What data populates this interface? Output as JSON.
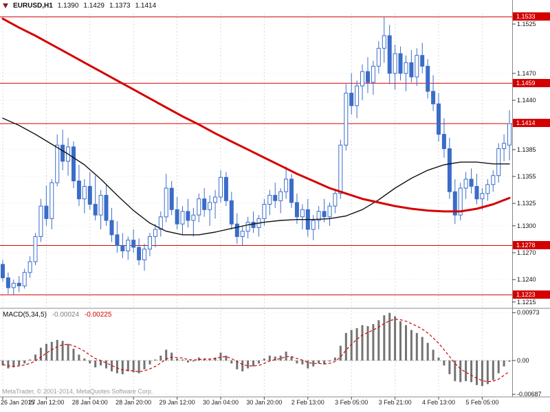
{
  "header": {
    "symbol_period": "EURUSD,H1",
    "open": "1.1390",
    "high": "1.1429",
    "low": "1.1373",
    "close": "1.1414"
  },
  "footer": {
    "copyright": "MetaTrader, © 2001-2014, MetaQuotes Software Corp."
  },
  "icons": {
    "chart_menu": "triangle-down"
  },
  "colors": {
    "bull_fill": "#ffffff",
    "bear_fill": "#3a6cc8",
    "candle_outline": "#3a6cc8",
    "level_line": "#d40000",
    "tag_bg": "#d40000",
    "tag_text": "#ffffff",
    "ma_fast": "#111111",
    "ma_slow": "#d40000",
    "histogram": "#737373",
    "signal": "#d40000",
    "grid": "#d8d8d8"
  },
  "chart_data": [
    {
      "type": "candlestick",
      "title": "EURUSD,H1",
      "ylim": [
        1.12095,
        1.15365
      ],
      "y_ticks": [
        1.1525,
        1.147,
        1.144,
        1.1385,
        1.1355,
        1.1325,
        1.13,
        1.127,
        1.124,
        1.1215
      ],
      "level_lines": [
        1.1533,
        1.1459,
        1.1414,
        1.1278,
        1.1223
      ],
      "x_labels": [
        {
          "text": "26 Jan 2015",
          "bar": 0
        },
        {
          "text": "27 Jan 12:00",
          "bar": 8
        },
        {
          "text": "28 Jan 04:00",
          "bar": 16
        },
        {
          "text": "28 Jan 20:00",
          "bar": 24
        },
        {
          "text": "29 Jan 12:00",
          "bar": 32
        },
        {
          "text": "30 Jan 04:00",
          "bar": 40
        },
        {
          "text": "30 Jan 20:00",
          "bar": 48
        },
        {
          "text": "2 Feb 13:00",
          "bar": 56
        },
        {
          "text": "3 Feb 05:00",
          "bar": 64
        },
        {
          "text": "3 Feb 21:00",
          "bar": 72
        },
        {
          "text": "4 Feb 13:00",
          "bar": 80
        },
        {
          "text": "5 Feb 05:00",
          "bar": 88
        }
      ],
      "candles": [
        [
          1.1257,
          1.1262,
          1.1238,
          1.1242
        ],
        [
          1.1242,
          1.1248,
          1.1224,
          1.1231
        ],
        [
          1.1231,
          1.124,
          1.1223,
          1.1236
        ],
        [
          1.1236,
          1.1244,
          1.1226,
          1.1233
        ],
        [
          1.1233,
          1.1252,
          1.123,
          1.1248
        ],
        [
          1.1248,
          1.1266,
          1.1242,
          1.126
        ],
        [
          1.126,
          1.1292,
          1.1256,
          1.1288
        ],
        [
          1.1288,
          1.133,
          1.1282,
          1.1322
        ],
        [
          1.1322,
          1.1345,
          1.13,
          1.1308
        ],
        [
          1.1308,
          1.1352,
          1.1296,
          1.1348
        ],
        [
          1.1348,
          1.1402,
          1.1344,
          1.139
        ],
        [
          1.139,
          1.1407,
          1.1362,
          1.1372
        ],
        [
          1.1372,
          1.1398,
          1.1356,
          1.1388
        ],
        [
          1.1388,
          1.1394,
          1.1342,
          1.135
        ],
        [
          1.135,
          1.1368,
          1.1322,
          1.133
        ],
        [
          1.133,
          1.1352,
          1.1314,
          1.1344
        ],
        [
          1.1344,
          1.136,
          1.1318,
          1.1324
        ],
        [
          1.1324,
          1.1356,
          1.1306,
          1.1312
        ],
        [
          1.1312,
          1.134,
          1.1296,
          1.1334
        ],
        [
          1.1334,
          1.1346,
          1.13,
          1.1306
        ],
        [
          1.1306,
          1.132,
          1.1282,
          1.129
        ],
        [
          1.129,
          1.1305,
          1.127,
          1.1278
        ],
        [
          1.1278,
          1.1292,
          1.1264,
          1.1272
        ],
        [
          1.1272,
          1.1288,
          1.1262,
          1.1284
        ],
        [
          1.1284,
          1.1296,
          1.127,
          1.1276
        ],
        [
          1.1276,
          1.1286,
          1.1256,
          1.1262
        ],
        [
          1.1262,
          1.128,
          1.125,
          1.1274
        ],
        [
          1.1274,
          1.1292,
          1.1266,
          1.1288
        ],
        [
          1.1288,
          1.1302,
          1.1276,
          1.1296
        ],
        [
          1.1296,
          1.1316,
          1.1288,
          1.131
        ],
        [
          1.131,
          1.1358,
          1.1304,
          1.1342
        ],
        [
          1.1342,
          1.135,
          1.1312,
          1.1318
        ],
        [
          1.1318,
          1.1332,
          1.1296,
          1.1302
        ],
        [
          1.1302,
          1.1322,
          1.129,
          1.1316
        ],
        [
          1.1316,
          1.133,
          1.1298,
          1.1306
        ],
        [
          1.1306,
          1.132,
          1.1288,
          1.1312
        ],
        [
          1.1312,
          1.1336,
          1.1304,
          1.133
        ],
        [
          1.133,
          1.1342,
          1.131,
          1.1318
        ],
        [
          1.1318,
          1.1334,
          1.13,
          1.1326
        ],
        [
          1.1326,
          1.134,
          1.1308,
          1.1332
        ],
        [
          1.1332,
          1.1362,
          1.1326,
          1.1354
        ],
        [
          1.1354,
          1.136,
          1.1322,
          1.1328
        ],
        [
          1.1328,
          1.1338,
          1.1296,
          1.1302
        ],
        [
          1.1302,
          1.1314,
          1.128,
          1.1288
        ],
        [
          1.1288,
          1.13,
          1.1278,
          1.1294
        ],
        [
          1.1294,
          1.131,
          1.1286,
          1.1304
        ],
        [
          1.1304,
          1.1316,
          1.1292,
          1.1298
        ],
        [
          1.1298,
          1.1312,
          1.1288,
          1.1308
        ],
        [
          1.1308,
          1.133,
          1.13,
          1.1324
        ],
        [
          1.1324,
          1.134,
          1.1312,
          1.1334
        ],
        [
          1.1334,
          1.1348,
          1.132,
          1.1328
        ],
        [
          1.1328,
          1.1342,
          1.1314,
          1.1338
        ],
        [
          1.1338,
          1.1366,
          1.133,
          1.1352
        ],
        [
          1.1352,
          1.1358,
          1.132,
          1.1326
        ],
        [
          1.1326,
          1.1336,
          1.1302,
          1.131
        ],
        [
          1.131,
          1.1324,
          1.1296,
          1.1318
        ],
        [
          1.1318,
          1.133,
          1.1288,
          1.1296
        ],
        [
          1.1296,
          1.1312,
          1.1284,
          1.1306
        ],
        [
          1.1306,
          1.1322,
          1.1296,
          1.1316
        ],
        [
          1.1316,
          1.133,
          1.1304,
          1.131
        ],
        [
          1.131,
          1.1326,
          1.13,
          1.1322
        ],
        [
          1.1322,
          1.134,
          1.1314,
          1.1336
        ],
        [
          1.1336,
          1.1396,
          1.133,
          1.139
        ],
        [
          1.139,
          1.1458,
          1.1384,
          1.1448
        ],
        [
          1.1448,
          1.147,
          1.1424,
          1.1434
        ],
        [
          1.1434,
          1.1462,
          1.142,
          1.1456
        ],
        [
          1.1456,
          1.148,
          1.144,
          1.1472
        ],
        [
          1.1472,
          1.1488,
          1.1448,
          1.146
        ],
        [
          1.146,
          1.1484,
          1.1446,
          1.1478
        ],
        [
          1.1478,
          1.1506,
          1.147,
          1.1498
        ],
        [
          1.1498,
          1.1533,
          1.1482,
          1.1512
        ],
        [
          1.1512,
          1.1524,
          1.1458,
          1.147
        ],
        [
          1.147,
          1.1502,
          1.1452,
          1.1492
        ],
        [
          1.1492,
          1.15,
          1.1462,
          1.147
        ],
        [
          1.147,
          1.149,
          1.145,
          1.1482
        ],
        [
          1.1482,
          1.1496,
          1.146,
          1.1466
        ],
        [
          1.1466,
          1.1498,
          1.1456,
          1.149
        ],
        [
          1.149,
          1.1504,
          1.147,
          1.1478
        ],
        [
          1.1478,
          1.1486,
          1.1442,
          1.145
        ],
        [
          1.145,
          1.1468,
          1.1428,
          1.1436
        ],
        [
          1.1436,
          1.1448,
          1.1394,
          1.1402
        ],
        [
          1.1402,
          1.142,
          1.1376,
          1.1386
        ],
        [
          1.1386,
          1.1398,
          1.133,
          1.1338
        ],
        [
          1.1338,
          1.1352,
          1.1302,
          1.1312
        ],
        [
          1.1312,
          1.1348,
          1.1306,
          1.1342
        ],
        [
          1.1342,
          1.136,
          1.133,
          1.1352
        ],
        [
          1.1352,
          1.1364,
          1.1336,
          1.1344
        ],
        [
          1.1344,
          1.1358,
          1.1324,
          1.133
        ],
        [
          1.133,
          1.1342,
          1.1318,
          1.1336
        ],
        [
          1.1336,
          1.1352,
          1.1328,
          1.1346
        ],
        [
          1.1346,
          1.1362,
          1.1338,
          1.1356
        ],
        [
          1.1356,
          1.1392,
          1.1348,
          1.1386
        ],
        [
          1.1386,
          1.1402,
          1.1372,
          1.1392
        ],
        [
          1.139,
          1.1429,
          1.1373,
          1.1414
        ]
      ],
      "overlays": [
        {
          "name": "ma-fast-black",
          "color": "#111111",
          "width": 1.4,
          "step": 3,
          "prices": [
            1.142,
            1.1412,
            1.1402,
            1.1391,
            1.138,
            1.1368,
            1.1352,
            1.1334,
            1.1317,
            1.1303,
            1.1294,
            1.129,
            1.129,
            1.1293,
            1.1297,
            1.1301,
            1.1304,
            1.1306,
            1.1307,
            1.1307,
            1.1308,
            1.1311,
            1.1318,
            1.1329,
            1.1342,
            1.1353,
            1.1362,
            1.1368,
            1.1371,
            1.1371,
            1.1369,
            1.1369
          ]
        },
        {
          "name": "ma-slow-red",
          "color": "#d40000",
          "width": 3,
          "step": 3,
          "prices": [
            1.1531,
            1.1521,
            1.1512,
            1.1502,
            1.1492,
            1.1482,
            1.1472,
            1.1462,
            1.1452,
            1.1442,
            1.1432,
            1.1422,
            1.1413,
            1.1403,
            1.1394,
            1.1385,
            1.1376,
            1.1367,
            1.1358,
            1.135,
            1.1342,
            1.1336,
            1.133,
            1.1326,
            1.1322,
            1.1319,
            1.1317,
            1.1316,
            1.1316,
            1.1319,
            1.1324,
            1.1331
          ]
        }
      ]
    },
    {
      "type": "bar",
      "title": "MACD(5,34,5)",
      "value_main": "-0.00024",
      "value_signal": "-0.00225",
      "ylim": [
        -0.0074,
        0.0102
      ],
      "y_ticks": [
        {
          "label": "0.00973",
          "value": 0.00973
        },
        {
          "label": "0.00",
          "value": 0
        },
        {
          "label": "-0.00687",
          "value": -0.00687
        }
      ],
      "values": [
        -0.001,
        -0.0016,
        -0.0014,
        -0.001,
        -0.0006,
        0.0002,
        0.0012,
        0.0026,
        0.0034,
        0.0038,
        0.0042,
        0.004,
        0.0034,
        0.0024,
        0.0012,
        0.0004,
        -0.0006,
        -0.0014,
        -0.001,
        -0.0016,
        -0.0022,
        -0.0026,
        -0.0028,
        -0.0022,
        -0.0024,
        -0.0026,
        -0.0018,
        -0.0008,
        0.0002,
        0.001,
        0.0022,
        0.0016,
        0.0004,
        0.0002,
        -0.0004,
        -0.0002,
        0.0006,
        0.0004,
        0.0002,
        0.0006,
        0.0016,
        0.001,
        -0.0006,
        -0.0018,
        -0.0022,
        -0.0016,
        -0.0012,
        -0.0006,
        0.0004,
        0.001,
        0.0008,
        0.001,
        0.0018,
        0.0008,
        -0.0006,
        -0.0008,
        -0.0016,
        -0.0012,
        -0.0006,
        -0.0008,
        -0.0002,
        0.0006,
        0.003,
        0.0056,
        0.0062,
        0.0066,
        0.0072,
        0.007,
        0.0074,
        0.0082,
        0.0092,
        0.0097,
        0.009,
        0.008,
        0.0072,
        0.0062,
        0.0056,
        0.0048,
        0.0036,
        0.0022,
        0.0006,
        -0.001,
        -0.0028,
        -0.0042,
        -0.0044,
        -0.0042,
        -0.0044,
        -0.005,
        -0.0052,
        -0.0048,
        -0.004,
        -0.0026,
        -0.0012,
        -0.00024
      ],
      "signal": [
        -0.0008,
        -0.0011,
        -0.0012,
        -0.0011,
        -0.0009,
        -0.0006,
        -0.0001,
        0.0007,
        0.0015,
        0.0022,
        0.0028,
        0.0032,
        0.0033,
        0.003,
        0.0025,
        0.0019,
        0.0011,
        0.0004,
        0.0,
        -0.0005,
        -0.001,
        -0.0015,
        -0.0019,
        -0.002,
        -0.0021,
        -0.0023,
        -0.0021,
        -0.0017,
        -0.0012,
        -0.0005,
        0.0003,
        0.0007,
        0.0006,
        0.0005,
        0.0002,
        0.0001,
        0.0002,
        0.0003,
        0.0003,
        0.0004,
        0.0007,
        0.0008,
        0.0004,
        -0.0002,
        -0.0008,
        -0.0011,
        -0.0011,
        -0.001,
        -0.0006,
        -0.0001,
        0.0002,
        0.0004,
        0.0008,
        0.0008,
        0.0004,
        0.0001,
        -0.0004,
        -0.0006,
        -0.0006,
        -0.0007,
        -0.0006,
        -0.0002,
        0.0007,
        0.0021,
        0.0033,
        0.0043,
        0.0052,
        0.0057,
        0.0062,
        0.0068,
        0.0075,
        0.0081,
        0.0084,
        0.0083,
        0.008,
        0.0075,
        0.007,
        0.0064,
        0.0056,
        0.0046,
        0.0035,
        0.0022,
        0.0008,
        -0.0006,
        -0.0017,
        -0.0024,
        -0.003,
        -0.0036,
        -0.0041,
        -0.0043,
        -0.0042,
        -0.0038,
        -0.003,
        -0.00225
      ]
    }
  ]
}
